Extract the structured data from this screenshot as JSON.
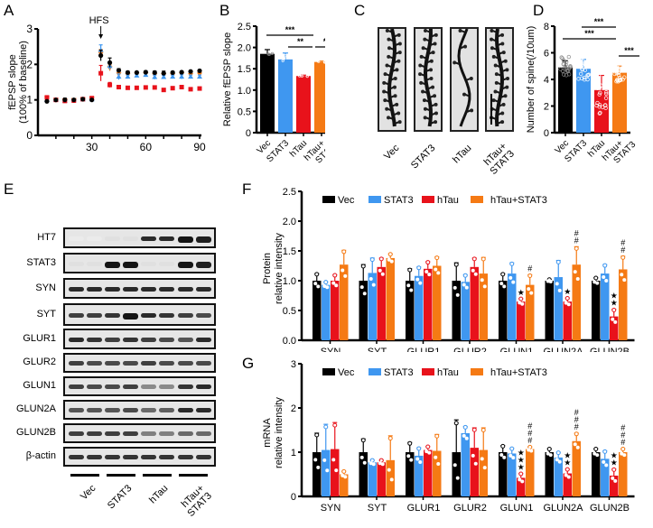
{
  "panels": {
    "A": "A",
    "B": "B",
    "C": "C",
    "D": "D",
    "E": "E",
    "F": "F",
    "G": "G"
  },
  "colors": {
    "Vec": "#000000",
    "STAT3": "#3f97f0",
    "hTau": "#e8121b",
    "hTau+STAT3": "#f57a14"
  },
  "groups": [
    "Vec",
    "STAT3",
    "hTau",
    "hTau+STAT3"
  ],
  "group_tick_labels": [
    [
      "Vec"
    ],
    [
      "STAT3"
    ],
    [
      "hTau"
    ],
    [
      "hTau+",
      "STAT3"
    ]
  ],
  "chart_data": [
    {
      "id": "A",
      "type": "scatter",
      "title": "",
      "xlabel": "",
      "ylabel": "fEPSP slope",
      "ylabel2": "(100% of baseline)",
      "annotation": "HFS",
      "annotation_x": 35,
      "xlim": [
        0,
        90
      ],
      "ylim": [
        0,
        3
      ],
      "xticks": [
        30,
        60,
        90
      ],
      "yticks": [
        0,
        1,
        2,
        3
      ],
      "x": [
        5,
        10,
        15,
        20,
        25,
        30,
        35,
        40,
        45,
        50,
        55,
        60,
        65,
        70,
        75,
        80,
        85,
        90
      ],
      "series": [
        {
          "name": "Vec",
          "values": [
            0.96,
            1.0,
            1.0,
            1.0,
            1.02,
            1.0,
            2.25,
            2.05,
            1.83,
            1.77,
            1.77,
            1.78,
            1.77,
            1.75,
            1.77,
            1.78,
            1.8,
            1.82
          ],
          "errors": [
            0.03,
            0.02,
            0.05,
            0.03,
            0.03,
            0.03,
            0.15,
            0.13,
            0.05,
            0.04,
            0.03,
            0.04,
            0.04,
            0.06,
            0.03,
            0.03,
            0.03,
            0.03
          ]
        },
        {
          "name": "STAT3",
          "values": [
            1.0,
            1.0,
            0.98,
            1.0,
            1.01,
            1.01,
            2.4,
            1.95,
            1.65,
            1.65,
            1.68,
            1.7,
            1.64,
            1.64,
            1.65,
            1.65,
            1.65,
            1.65
          ],
          "errors": [
            0.03,
            0.02,
            0.04,
            0.03,
            0.03,
            0.03,
            0.15,
            0.1,
            0.08,
            0.05,
            0.04,
            0.05,
            0.06,
            0.05,
            0.05,
            0.06,
            0.05,
            0.05
          ]
        },
        {
          "name": "hTau",
          "values": [
            1.07,
            1.0,
            0.97,
            0.98,
            1.02,
            1.05,
            1.75,
            1.42,
            1.36,
            1.34,
            1.34,
            1.35,
            1.35,
            1.28,
            1.33,
            1.36,
            1.3,
            1.32
          ],
          "errors": [
            0.04,
            0.02,
            0.04,
            0.03,
            0.03,
            0.03,
            0.22,
            0.07,
            0.03,
            0.03,
            0.02,
            0.03,
            0.03,
            0.03,
            0.03,
            0.03,
            0.03,
            0.03
          ]
        },
        {
          "name": "hTau+STAT3",
          "values": [
            1.05,
            1.0,
            0.99,
            1.0,
            1.02,
            1.03,
            2.3,
            1.9,
            1.72,
            1.7,
            1.72,
            1.73,
            1.7,
            1.7,
            1.7,
            1.72,
            1.7,
            1.72
          ],
          "errors": [
            0.03,
            0.02,
            0.04,
            0.03,
            0.03,
            0.03,
            0.12,
            0.08,
            0.05,
            0.04,
            0.04,
            0.04,
            0.05,
            0.05,
            0.04,
            0.04,
            0.05,
            0.05
          ]
        }
      ]
    },
    {
      "id": "B",
      "type": "bar",
      "ylabel": "Relative fEPSP slope",
      "ylim": [
        0,
        2.5
      ],
      "yticks": [
        "0",
        "0.5",
        "1.0",
        "1.5",
        "2.0",
        "2.5"
      ],
      "categories": [
        "Vec",
        "STAT3",
        "hTau",
        "hTau+STAT3"
      ],
      "values": [
        1.85,
        1.72,
        1.33,
        1.66
      ],
      "errors": [
        0.1,
        0.15,
        0.02,
        0.02
      ],
      "significance": [
        {
          "from": 0,
          "to": 2,
          "label": "***"
        },
        {
          "from": 1,
          "to": 2,
          "label": "**"
        },
        {
          "from": 2,
          "to": 3,
          "label": "*"
        }
      ]
    },
    {
      "id": "D",
      "type": "bar",
      "ylabel": "Number of spine(/10um)",
      "ylim": [
        0,
        8
      ],
      "yticks": [
        "0",
        "2",
        "4",
        "6",
        "8"
      ],
      "categories": [
        "Vec",
        "STAT3",
        "hTau",
        "hTau+STAT3"
      ],
      "values": [
        4.9,
        4.8,
        3.2,
        4.5
      ],
      "errors": [
        0.5,
        0.7,
        1.1,
        0.5
      ],
      "significance": [
        {
          "from": 1,
          "to": 2,
          "label": "***"
        },
        {
          "from": 0,
          "to": 2,
          "label": "***"
        },
        {
          "from": 2,
          "to": 3,
          "label": "***"
        }
      ]
    },
    {
      "id": "F",
      "type": "bar",
      "ylabel": "Protein",
      "ylabel2": "relative intensity",
      "ylim": [
        0,
        2.5
      ],
      "yticks": [
        "0.0",
        "0.5",
        "1.0",
        "1.5",
        "2.0",
        "2.5"
      ],
      "categories": [
        "SYN",
        "SYT",
        "GLUR1",
        "GLUR2",
        "GLUN1",
        "GLUN2A",
        "GLUN2B"
      ],
      "series": [
        {
          "name": "Vec",
          "values": [
            1.0,
            1.0,
            1.0,
            1.0,
            1.0,
            1.0,
            1.0
          ],
          "errors": [
            0.12,
            0.27,
            0.2,
            0.3,
            0.12,
            0.02,
            0.05
          ]
        },
        {
          "name": "STAT3",
          "values": [
            0.93,
            1.13,
            1.08,
            0.98,
            1.12,
            1.06,
            1.12
          ],
          "errors": [
            0.05,
            0.25,
            0.15,
            0.12,
            0.18,
            0.28,
            0.15
          ]
        },
        {
          "name": "hTau",
          "values": [
            1.0,
            1.23,
            1.2,
            1.23,
            0.65,
            0.65,
            0.4
          ],
          "errors": [
            0.1,
            0.15,
            0.12,
            0.15,
            0.05,
            0.06,
            0.12
          ]
        },
        {
          "name": "hTau+STAT3",
          "values": [
            1.27,
            1.38,
            1.25,
            1.12,
            0.93,
            1.27,
            1.19
          ],
          "errors": [
            0.24,
            0.07,
            0.15,
            0.27,
            0.17,
            0.3,
            0.22
          ]
        }
      ],
      "annotations": [
        {
          "category": "GLUN1",
          "series": "hTau",
          "label": "*"
        },
        {
          "category": "GLUN2A",
          "series": "hTau",
          "label": "*"
        },
        {
          "category": "GLUN2B",
          "series": "hTau",
          "label": "**"
        },
        {
          "category": "GLUN1",
          "series": "hTau+STAT3",
          "label": "#"
        },
        {
          "category": "GLUN2A",
          "series": "hTau+STAT3",
          "label": "##"
        },
        {
          "category": "GLUN2B",
          "series": "hTau+STAT3",
          "label": "##"
        }
      ]
    },
    {
      "id": "G",
      "type": "bar",
      "ylabel": "mRNA",
      "ylabel2": "relative intensity",
      "ylim": [
        0,
        3
      ],
      "yticks": [
        "0",
        "1",
        "2",
        "3"
      ],
      "categories": [
        "SYN",
        "SYT",
        "GLUR1",
        "GLUR2",
        "GLUN1",
        "GLUN2A",
        "GLUN2B"
      ],
      "series": [
        {
          "name": "Vec",
          "values": [
            1.0,
            1.0,
            1.0,
            1.0,
            1.0,
            1.0,
            1.0
          ],
          "errors": [
            0.43,
            0.3,
            0.22,
            0.73,
            0.15,
            0.08,
            0.08
          ]
        },
        {
          "name": "STAT3",
          "values": [
            1.05,
            0.77,
            0.92,
            1.43,
            0.97,
            0.88,
            0.85
          ],
          "errors": [
            0.58,
            0.05,
            0.18,
            0.15,
            0.12,
            0.12,
            0.18
          ]
        },
        {
          "name": "hTau",
          "values": [
            1.07,
            0.77,
            1.05,
            1.1,
            0.42,
            0.52,
            0.47
          ],
          "errors": [
            0.6,
            0.05,
            0.08,
            0.45,
            0.1,
            0.1,
            0.15
          ]
        },
        {
          "name": "hTau+STAT3",
          "values": [
            0.5,
            0.82,
            1.03,
            1.05,
            1.07,
            1.25,
            1.0
          ],
          "errors": [
            0.07,
            0.55,
            0.37,
            0.5,
            0.05,
            0.18,
            0.08
          ]
        }
      ],
      "annotations": [
        {
          "category": "GLUN1",
          "series": "hTau",
          "label": "***"
        },
        {
          "category": "GLUN2A",
          "series": "hTau",
          "label": "**"
        },
        {
          "category": "GLUN2B",
          "series": "hTau",
          "label": "**"
        },
        {
          "category": "GLUN1",
          "series": "hTau+STAT3",
          "label": "###"
        },
        {
          "category": "GLUN2A",
          "series": "hTau+STAT3",
          "label": "###"
        },
        {
          "category": "GLUN2B",
          "series": "hTau+STAT3",
          "label": "###"
        }
      ]
    }
  ],
  "panel_C": {
    "labels": [
      [
        "Vec"
      ],
      [
        "STAT3"
      ],
      [
        "hTau"
      ],
      [
        "hTau+",
        "STAT3"
      ]
    ]
  },
  "panel_E": {
    "rows": [
      {
        "label": "HT7",
        "intensity": [
          0,
          0,
          0.05,
          0.05,
          0.9,
          0.9,
          1.0,
          0.95
        ]
      },
      {
        "label": "STAT3",
        "intensity": [
          0.05,
          0.05,
          1.0,
          1.0,
          0.05,
          0.05,
          1.0,
          0.95
        ]
      },
      {
        "label": "SYN",
        "intensity": [
          0.9,
          0.9,
          0.9,
          0.9,
          0.9,
          0.9,
          0.9,
          0.9
        ]
      },
      {
        "label": "SYT",
        "intensity": [
          0.8,
          0.8,
          0.85,
          1.0,
          0.9,
          0.85,
          0.8,
          0.75
        ]
      },
      {
        "label": "GLUR1",
        "intensity": [
          0.9,
          0.85,
          0.8,
          0.85,
          0.8,
          0.75,
          0.7,
          0.9
        ]
      },
      {
        "label": "GLUR2",
        "intensity": [
          0.8,
          0.75,
          0.75,
          0.75,
          0.8,
          0.75,
          0.75,
          0.75
        ]
      },
      {
        "label": "GLUN1",
        "intensity": [
          0.8,
          0.75,
          0.75,
          0.8,
          0.45,
          0.45,
          0.85,
          0.9
        ]
      },
      {
        "label": "GLUN2A",
        "intensity": [
          0.7,
          0.7,
          0.7,
          0.75,
          0.6,
          0.65,
          0.9,
          0.9
        ]
      },
      {
        "label": "GLUN2B",
        "intensity": [
          0.8,
          0.8,
          0.8,
          0.8,
          0.5,
          0.5,
          0.6,
          0.6
        ]
      },
      {
        "label": "β-actin",
        "intensity": [
          0.85,
          0.85,
          0.85,
          0.85,
          0.85,
          0.85,
          0.85,
          0.85
        ]
      }
    ]
  }
}
